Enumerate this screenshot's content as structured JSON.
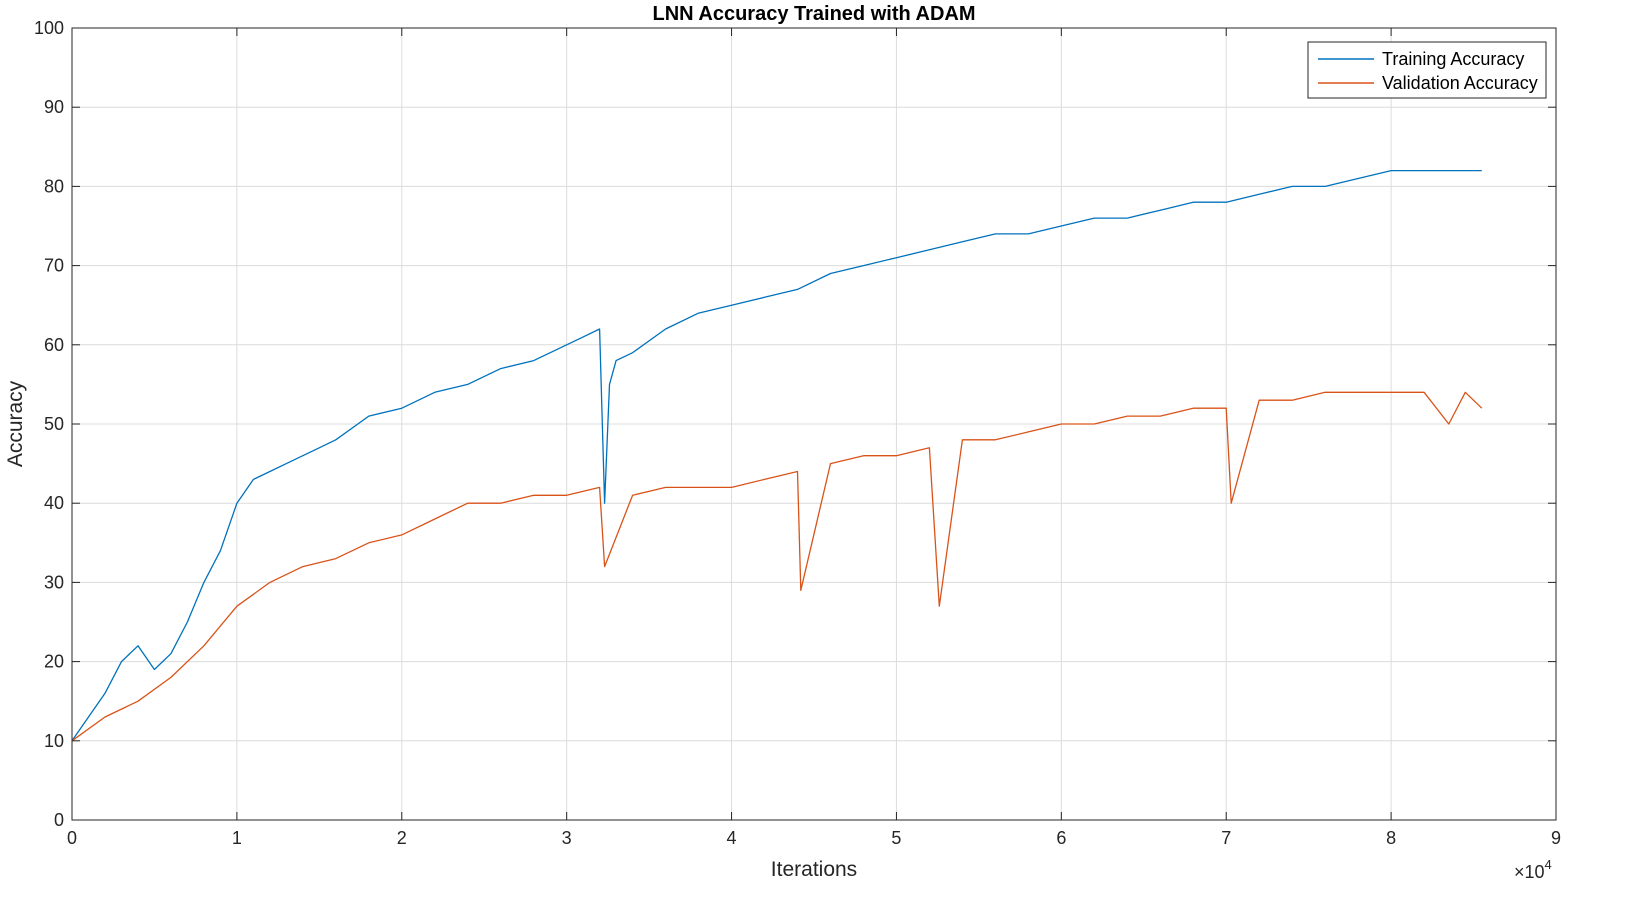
{
  "chart_data": {
    "type": "line",
    "title": "LNN Accuracy Trained with ADAM",
    "xlabel": "Iterations",
    "ylabel": "Accuracy",
    "x_exponent_label": "×10",
    "x_exponent_power": "4",
    "xlim": [
      0,
      90000
    ],
    "ylim": [
      0,
      100
    ],
    "xtick_values": [
      0,
      10000,
      20000,
      30000,
      40000,
      50000,
      60000,
      70000,
      80000,
      90000
    ],
    "xtick_labels": [
      "0",
      "1",
      "2",
      "3",
      "4",
      "5",
      "6",
      "7",
      "8",
      "9"
    ],
    "ytick_values": [
      0,
      10,
      20,
      30,
      40,
      50,
      60,
      70,
      80,
      90,
      100
    ],
    "ytick_labels": [
      "0",
      "10",
      "20",
      "30",
      "40",
      "50",
      "60",
      "70",
      "80",
      "90",
      "100"
    ],
    "grid": true,
    "legend_position": "top-right",
    "series": [
      {
        "name": "Training Accuracy",
        "color": "#0072BD",
        "x": [
          0,
          1000,
          2000,
          3000,
          4000,
          5000,
          6000,
          7000,
          8000,
          9000,
          10000,
          11000,
          12000,
          13000,
          14000,
          15000,
          16000,
          18000,
          20000,
          22000,
          24000,
          26000,
          28000,
          30000,
          31000,
          32000,
          32300,
          32600,
          33000,
          34000,
          36000,
          38000,
          40000,
          42000,
          44000,
          46000,
          48000,
          50000,
          52000,
          54000,
          56000,
          58000,
          60000,
          62000,
          64000,
          66000,
          68000,
          70000,
          72000,
          74000,
          76000,
          78000,
          80000,
          82000,
          84000,
          85500
        ],
        "y": [
          10,
          13,
          16,
          20,
          22,
          19,
          21,
          25,
          30,
          34,
          40,
          43,
          44,
          45,
          46,
          47,
          48,
          51,
          52,
          54,
          55,
          57,
          58,
          60,
          61,
          62,
          40,
          55,
          58,
          59,
          62,
          64,
          65,
          66,
          67,
          69,
          70,
          71,
          72,
          73,
          74,
          74,
          75,
          76,
          76,
          77,
          78,
          78,
          79,
          80,
          80,
          81,
          82,
          82,
          82,
          82
        ]
      },
      {
        "name": "Validation Accuracy",
        "color": "#D95319",
        "x": [
          0,
          2000,
          4000,
          6000,
          8000,
          10000,
          12000,
          14000,
          16000,
          18000,
          20000,
          22000,
          24000,
          26000,
          28000,
          30000,
          32000,
          32300,
          34000,
          36000,
          38000,
          40000,
          42000,
          44000,
          44200,
          46000,
          48000,
          50000,
          52000,
          52600,
          54000,
          56000,
          58000,
          60000,
          62000,
          64000,
          66000,
          68000,
          70000,
          70300,
          72000,
          74000,
          76000,
          78000,
          80000,
          82000,
          83500,
          84500,
          85500
        ],
        "y": [
          10,
          13,
          15,
          18,
          22,
          27,
          30,
          32,
          33,
          35,
          36,
          38,
          40,
          40,
          41,
          41,
          42,
          32,
          41,
          42,
          42,
          42,
          43,
          44,
          29,
          45,
          46,
          46,
          47,
          27,
          48,
          48,
          49,
          50,
          50,
          51,
          51,
          52,
          52,
          40,
          53,
          53,
          54,
          54,
          54,
          54,
          50,
          54,
          52
        ]
      }
    ]
  }
}
